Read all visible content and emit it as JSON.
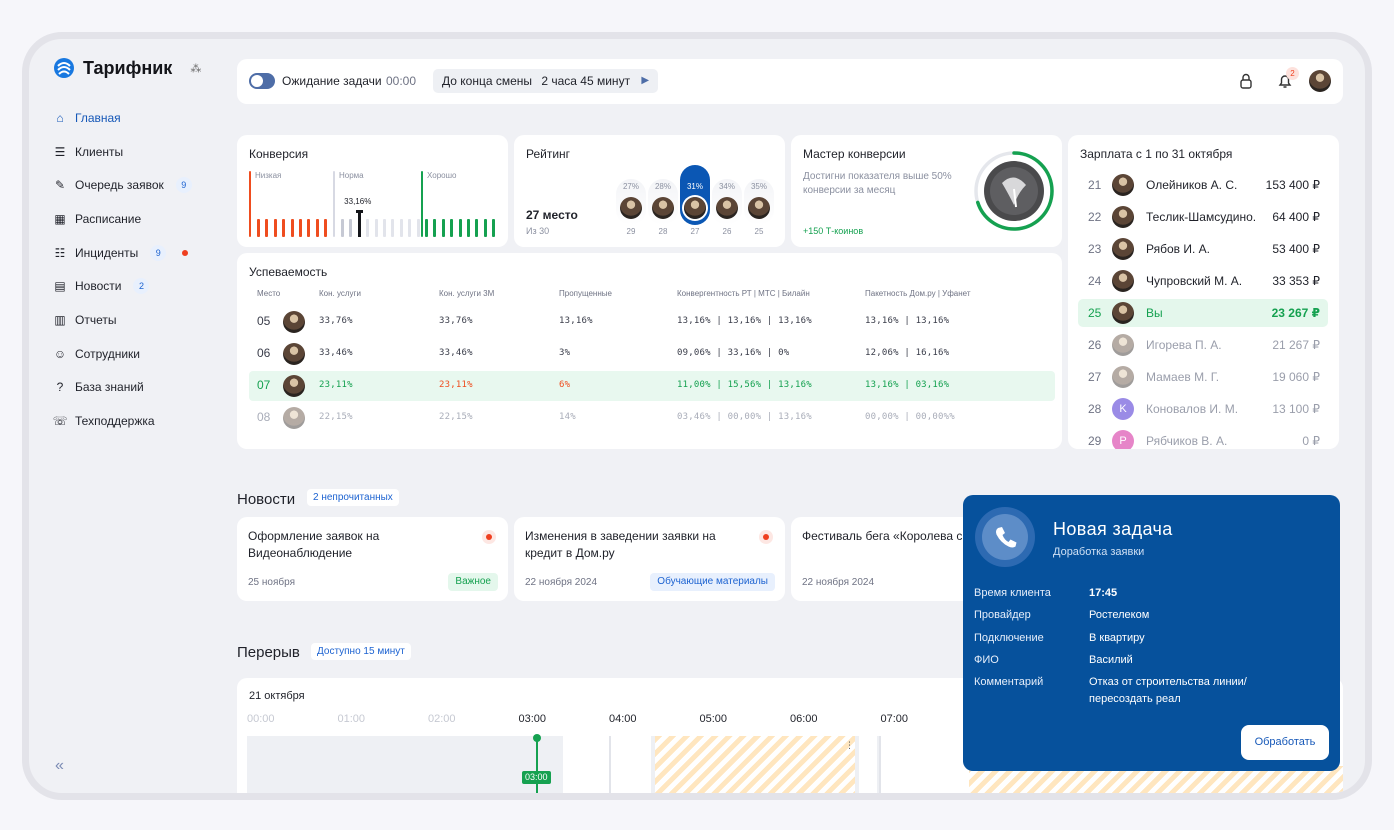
{
  "app": {
    "title": "Тарифник",
    "subtitle_icon": "network-icon"
  },
  "nav": [
    {
      "label": "Главная",
      "icon": "home-icon",
      "badge": "",
      "dot": false,
      "active": true
    },
    {
      "label": "Клиенты",
      "icon": "clients-icon",
      "badge": "",
      "dot": false
    },
    {
      "label": "Очередь заявок",
      "icon": "queue-icon",
      "badge": "9",
      "dot": false
    },
    {
      "label": "Расписание",
      "icon": "calendar-icon",
      "badge": "",
      "dot": false
    },
    {
      "label": "Инциденты",
      "icon": "incident-icon",
      "badge": "9",
      "dot": true
    },
    {
      "label": "Новости",
      "icon": "news-icon",
      "badge": "2",
      "dot": false
    },
    {
      "label": "Отчеты",
      "icon": "reports-icon",
      "badge": "",
      "dot": false
    },
    {
      "label": "Сотрудники",
      "icon": "staff-icon",
      "badge": "",
      "dot": false
    },
    {
      "label": "База знаний",
      "icon": "knowledge-icon",
      "badge": "",
      "dot": false
    },
    {
      "label": "Техподдержка",
      "icon": "support-icon",
      "badge": "",
      "dot": false
    }
  ],
  "topbar": {
    "waiting_label": "Ожидание задачи",
    "waiting_time": "00:00",
    "shift_label": "До конца смены",
    "shift_time": "2 часа 45 минут",
    "notif_count": "2"
  },
  "conversion": {
    "title": "Конверсия",
    "zones": [
      "Низкая",
      "Норма",
      "Хорошо"
    ],
    "marker_value": "33,16%",
    "marker_fraction": 0.3316
  },
  "rating": {
    "title": "Рейтинг",
    "place": "27 место",
    "of": "Из 30",
    "people": [
      {
        "pct": "27%",
        "rank": "29"
      },
      {
        "pct": "28%",
        "rank": "28"
      },
      {
        "pct": "31%",
        "rank": "27",
        "me": true
      },
      {
        "pct": "34%",
        "rank": "26"
      },
      {
        "pct": "35%",
        "rank": "25"
      }
    ]
  },
  "master": {
    "title": "Мастер конверсии",
    "desc": "Достигни показателя выше 50% конверсии за месяц",
    "reward": "+150 Т-коинов",
    "progress": 0.7
  },
  "salary": {
    "title": "Зарплата с 1 по 31 октября",
    "rows": [
      {
        "n": "21",
        "name": "Олейников А. С.",
        "amount": "153 400 ₽"
      },
      {
        "n": "22",
        "name": "Теслик-Шамсудино...",
        "amount": "64 400 ₽"
      },
      {
        "n": "23",
        "name": "Рябов И. А.",
        "amount": "53 400 ₽"
      },
      {
        "n": "24",
        "name": "Чупровский М. А.",
        "amount": "33 353 ₽"
      },
      {
        "n": "25",
        "name": "Вы",
        "amount": "23 267 ₽",
        "me": true
      },
      {
        "n": "26",
        "name": "Игорева П. А.",
        "amount": "21 267 ₽",
        "faded": true
      },
      {
        "n": "27",
        "name": "Мамаев М. Г.",
        "amount": "19 060 ₽",
        "faded": true
      },
      {
        "n": "28",
        "name": "Коновалов И. М.",
        "amount": "13 100 ₽",
        "faded": true,
        "letter": "K",
        "color": "#9a8be6"
      },
      {
        "n": "29",
        "name": "Рябчиков В. А.",
        "amount": "0 ₽",
        "faded": true,
        "letter": "P",
        "color": "#e685c8"
      }
    ]
  },
  "perf": {
    "title": "Успеваемость",
    "headers": [
      "Место",
      "Кон. услуги",
      "Кон. услуги 3М",
      "Пропущенные",
      "Конвергентность РТ | МТС | Билайн",
      "Пакетность Дом.ру | Уфанет"
    ],
    "rows": [
      {
        "place": "05",
        "c1": "33,76%",
        "c2": "33,76%",
        "c3": "13,16%",
        "c4": "13,16% | 13,16% | 13,16%",
        "c5": "13,16% | 13,16%"
      },
      {
        "place": "06",
        "c1": "33,46%",
        "c2": "33,46%",
        "c3": "3%",
        "c4": "09,06% | 33,16% | 0%",
        "c5": "12,06% | 16,16%"
      },
      {
        "place": "07",
        "c1": "23,11%",
        "c2": "23,11%",
        "c3": "6%",
        "c4": "11,00% | 15,56% | 13,16%",
        "c5": "13,16% | 03,16%",
        "me": true
      },
      {
        "place": "08",
        "c1": "22,15%",
        "c2": "22,15%",
        "c3": "14%",
        "c4": "03,46% | 00,00% | 13,16%",
        "c5": "00,00% | 00,00%%",
        "faded": true
      }
    ]
  },
  "news": {
    "title": "Новости",
    "unread": "2 непрочитанных",
    "items": [
      {
        "title": "Оформление заявок на Видеонаблюдение",
        "date": "25 ноября",
        "tag": "Важное",
        "tag_color": "#15a150",
        "tag_bg": "#e4f7ec",
        "dot": true
      },
      {
        "title": "Изменения в заведении заявки на кредит в Дом.ру",
        "date": "22 ноября 2024",
        "tag": "Обучающие материалы",
        "tag_color": "#1d63d1",
        "tag_bg": "#e8f0fd",
        "dot": true
      },
      {
        "title": "Фестиваль бега «Королева с",
        "date": "22 ноября 2024",
        "tag": "",
        "dot": false
      }
    ]
  },
  "break": {
    "title": "Перерыв",
    "available": "Доступно 15 минут",
    "date": "21 октября",
    "hours": [
      "00:00",
      "01:00",
      "02:00",
      "03:00",
      "04:00",
      "05:00",
      "06:00",
      "07:00"
    ],
    "now": "03:00"
  },
  "popup": {
    "title": "Новая задача",
    "subtitle": "Доработка заявки",
    "fields": [
      {
        "k": "Время клиента",
        "v": "17:45"
      },
      {
        "k": "Провайдер",
        "v": "Ростелеком"
      },
      {
        "k": "Подключение",
        "v": "В квартиру"
      },
      {
        "k": "ФИО",
        "v": "Василий"
      },
      {
        "k": "Комментарий",
        "v": "Отказ от строительства линии/ пересоздать реал"
      }
    ],
    "button": "Обработать"
  },
  "colors": {
    "accent": "#1658b8",
    "popup": "#06519c",
    "green": "#15a150",
    "red": "#ef3f1f"
  }
}
